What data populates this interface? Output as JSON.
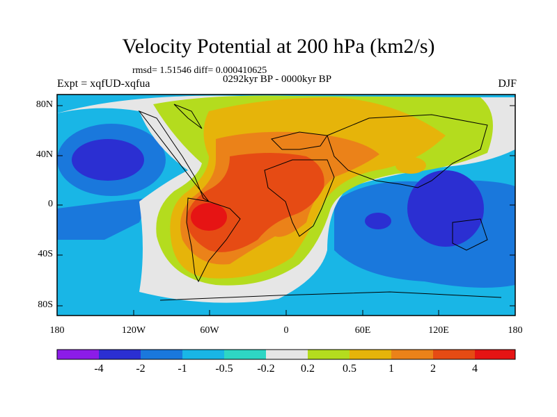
{
  "title": "Velocity Potential at 200 hPa (km2/s)",
  "stats": "rmsd= 1.51546 diff= 0.000410625",
  "period": "0292kyr BP - 0000kyr BP",
  "expt": "Expt = xqfUD-xqfua",
  "season": "DJF",
  "lat_labels": [
    "80N",
    "40N",
    "0",
    "40S",
    "80S"
  ],
  "lon_labels": [
    "180",
    "120W",
    "60W",
    "0",
    "60E",
    "120E",
    "180"
  ],
  "colorbar": {
    "labels": [
      "-4",
      "-2",
      "-1",
      "-0.5",
      "-0.2",
      "0.2",
      "0.5",
      "1",
      "2",
      "4"
    ],
    "colors": [
      "#8c1ce8",
      "#2b2fd2",
      "#1a78dc",
      "#19b6e6",
      "#2ed6c4",
      "#e6e6e6",
      "#b4dc1e",
      "#e6b40a",
      "#eb8219",
      "#e64b14",
      "#e61414"
    ]
  }
}
